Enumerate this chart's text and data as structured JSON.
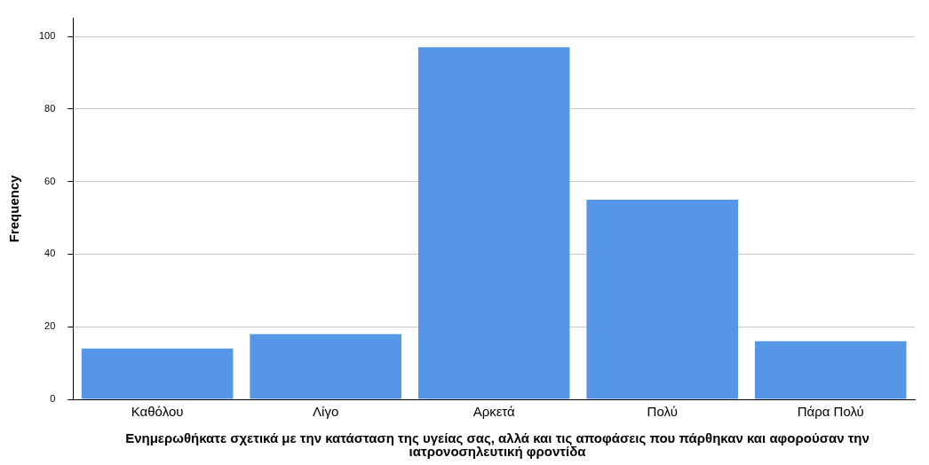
{
  "chart_data": {
    "type": "bar",
    "xlabel": "Ενημερωθήκατε σχετικά με την κατάσταση της υγείας σας, αλλά και τις αποφάσεις που πάρθηκαν και αφορούσαν την ιατρονοσηλευτική φροντίδα",
    "ylabel": "Frequency",
    "categories": [
      "Καθόλου",
      "Λίγο",
      "Αρκετά",
      "Πολύ",
      "Πάρα Πολύ"
    ],
    "values": [
      14,
      18,
      97,
      55,
      16
    ],
    "color": "#5596e6",
    "ylim": [
      0,
      105
    ],
    "yticks": [
      0,
      20,
      40,
      60,
      80,
      100
    ],
    "grid": "y",
    "legend": false
  }
}
